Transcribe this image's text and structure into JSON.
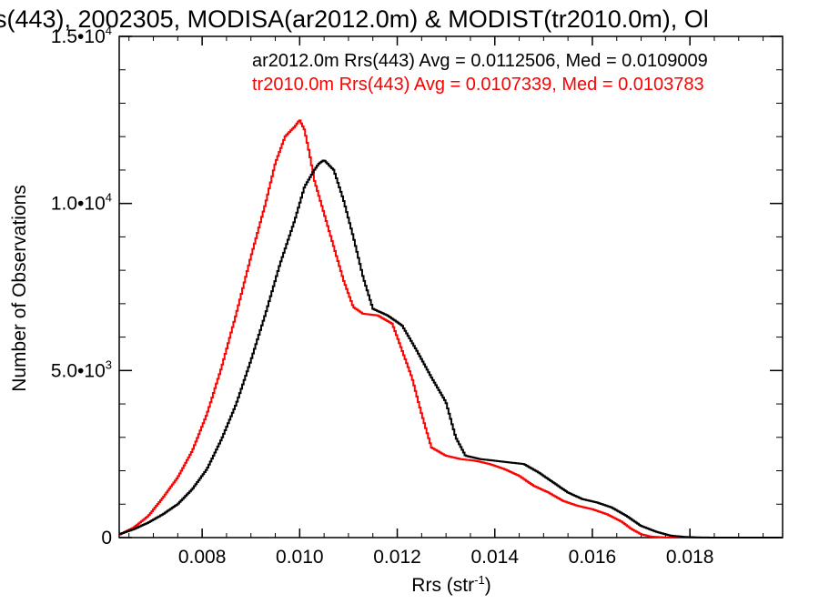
{
  "chart_data": {
    "type": "line",
    "title": "s(443), 2002305, MODISA(ar2012.0m) & MODIST(tr2010.0m), Ol",
    "xlabel": "Rrs (str",
    "xlabel_sup": "-1",
    "xlabel_close": ")",
    "ylabel": "Number of Observations",
    "xlim": [
      0.0063,
      0.0199
    ],
    "ylim": [
      0,
      15000
    ],
    "x_ticks": [
      0.008,
      0.01,
      0.012,
      0.014,
      0.016,
      0.018
    ],
    "x_tick_labels": [
      "0.008",
      "0.010",
      "0.012",
      "0.014",
      "0.016",
      "0.018"
    ],
    "y_ticks": [
      {
        "value": 0,
        "mantissa": "0",
        "exp": ""
      },
      {
        "value": 5000,
        "mantissa": "5.0•10",
        "exp": "3"
      },
      {
        "value": 10000,
        "mantissa": "1.0•10",
        "exp": "4"
      },
      {
        "value": 15000,
        "mantissa": "1.5•10",
        "exp": "4"
      }
    ],
    "grid": false,
    "legend_position": "top-right",
    "series": [
      {
        "name": "ar2012.0m Rrs(443) Avg = 0.0112506, Med = 0.0109009",
        "color": "#000000",
        "x": [
          0.0063,
          0.0066,
          0.0069,
          0.0072,
          0.0075,
          0.0078,
          0.0081,
          0.0084,
          0.0087,
          0.009,
          0.0093,
          0.0096,
          0.0099,
          0.0101,
          0.0103,
          0.0104,
          0.0105,
          0.0107,
          0.0109,
          0.0111,
          0.0113,
          0.0115,
          0.0118,
          0.0121,
          0.0124,
          0.0127,
          0.013,
          0.0132,
          0.0134,
          0.0137,
          0.014,
          0.0143,
          0.0146,
          0.0149,
          0.0152,
          0.0155,
          0.0158,
          0.0161,
          0.0164,
          0.0167,
          0.017,
          0.0173,
          0.0176,
          0.0179,
          0.0182,
          0.0185,
          0.0188,
          0.0199
        ],
        "values": [
          100,
          250,
          450,
          700,
          1000,
          1450,
          2050,
          2950,
          4000,
          5300,
          6700,
          8200,
          9500,
          10500,
          11000,
          11200,
          11300,
          11000,
          10100,
          9000,
          7800,
          6850,
          6650,
          6350,
          5600,
          4800,
          4050,
          3000,
          2450,
          2350,
          2300,
          2250,
          2200,
          1950,
          1650,
          1350,
          1150,
          1050,
          900,
          650,
          350,
          180,
          60,
          20,
          5,
          0,
          0,
          0
        ]
      },
      {
        "name": "tr2010.0m Rrs(443) Avg = 0.0107339, Med = 0.0103783",
        "color": "#ff0000",
        "x": [
          0.0063,
          0.0066,
          0.0069,
          0.0072,
          0.0075,
          0.0078,
          0.0081,
          0.0084,
          0.0087,
          0.009,
          0.0093,
          0.0095,
          0.0097,
          0.0099,
          0.01,
          0.0101,
          0.0102,
          0.0103,
          0.0105,
          0.0107,
          0.0109,
          0.0111,
          0.0113,
          0.0116,
          0.0119,
          0.0121,
          0.0123,
          0.0125,
          0.0127,
          0.013,
          0.0133,
          0.0136,
          0.0139,
          0.0142,
          0.0145,
          0.0148,
          0.0151,
          0.0154,
          0.0157,
          0.016,
          0.0163,
          0.0166,
          0.0168,
          0.017,
          0.0172,
          0.0175,
          0.0178,
          0.0199
        ],
        "values": [
          80,
          300,
          650,
          1200,
          1800,
          2600,
          3700,
          5100,
          6700,
          8400,
          10000,
          11200,
          12000,
          12300,
          12500,
          12200,
          11500,
          10700,
          9700,
          8700,
          7700,
          6900,
          6700,
          6650,
          6400,
          5600,
          4800,
          3700,
          2700,
          2450,
          2350,
          2300,
          2200,
          2050,
          1850,
          1550,
          1350,
          1100,
          950,
          850,
          700,
          480,
          260,
          100,
          30,
          5,
          0,
          0
        ]
      }
    ]
  }
}
